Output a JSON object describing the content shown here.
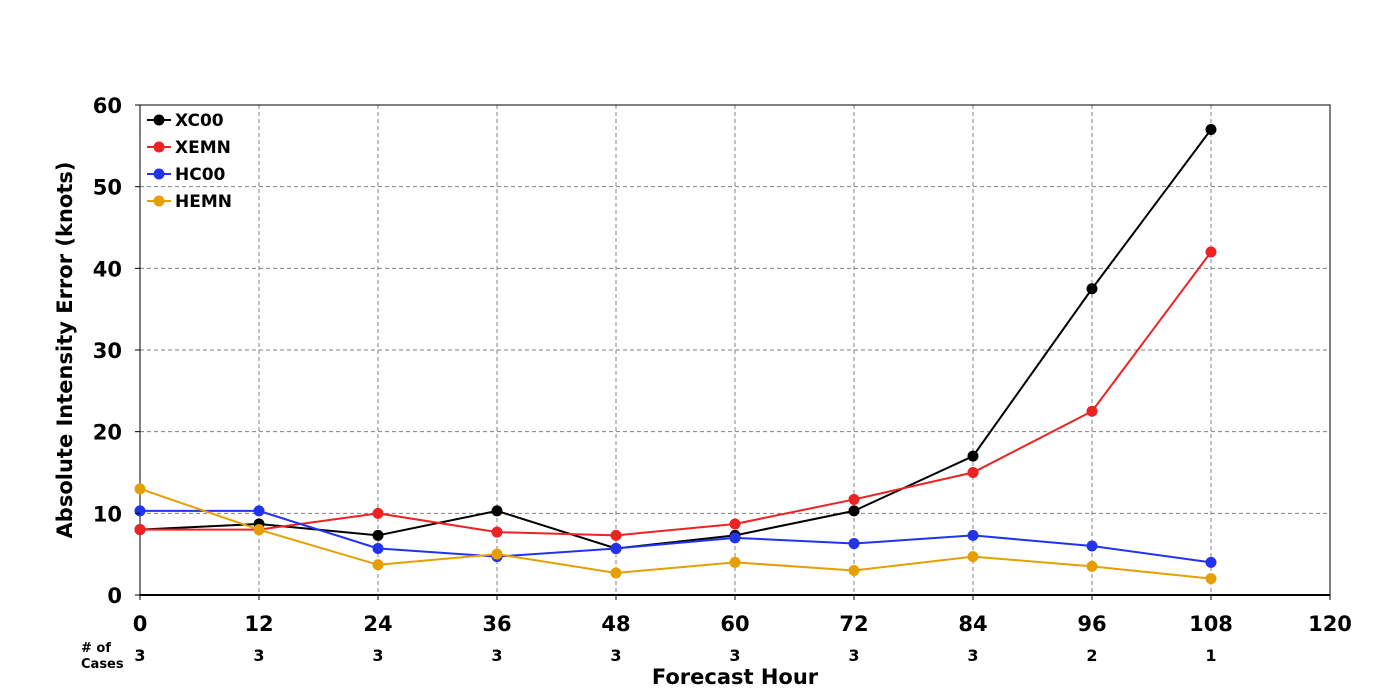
{
  "chart_data": {
    "type": "line",
    "xlabel": "Forecast Hour",
    "ylabel": "Absolute Intensity Error (knots)",
    "xlim": [
      0,
      120
    ],
    "ylim": [
      0,
      60
    ],
    "x_ticks": [
      0,
      12,
      24,
      36,
      48,
      60,
      72,
      84,
      96,
      108,
      120
    ],
    "y_ticks": [
      0,
      10,
      20,
      30,
      40,
      50,
      60
    ],
    "grid": true,
    "legend_position": "top-left",
    "x": [
      0,
      12,
      24,
      36,
      48,
      60,
      72,
      84,
      96,
      108
    ],
    "series": [
      {
        "name": "XC00",
        "color": "#000000",
        "values": [
          8.0,
          8.7,
          7.3,
          10.3,
          5.7,
          7.3,
          10.3,
          17.0,
          37.5,
          57.0
        ]
      },
      {
        "name": "XEMN",
        "color": "#ee2222",
        "values": [
          8.0,
          8.0,
          10.0,
          7.7,
          7.3,
          8.7,
          11.7,
          15.0,
          22.5,
          42.0
        ]
      },
      {
        "name": "HC00",
        "color": "#2233ee",
        "values": [
          10.3,
          10.3,
          5.7,
          4.7,
          5.7,
          7.0,
          6.3,
          7.3,
          6.0,
          4.0
        ]
      },
      {
        "name": "HEMN",
        "color": "#e69f00",
        "values": [
          13.0,
          8.0,
          3.7,
          5.0,
          2.7,
          4.0,
          3.0,
          4.7,
          3.5,
          2.0
        ]
      }
    ],
    "cases": {
      "label_line1": "# of",
      "label_line2": "Cases",
      "counts": [
        "3",
        "3",
        "3",
        "3",
        "3",
        "3",
        "3",
        "3",
        "2",
        "1"
      ]
    }
  }
}
